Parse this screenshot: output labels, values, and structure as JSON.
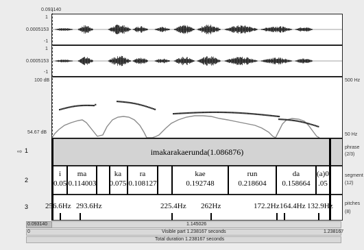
{
  "cursor": {
    "time": "0.093140"
  },
  "waveform": {
    "top": "1",
    "mid": "0.0005153",
    "bottom": "-1"
  },
  "spectrum": {
    "top_db": "100 dB",
    "bottom_db": "54.67 dB",
    "top_hz": "500 Hz",
    "bottom_hz": "50 Hz"
  },
  "tiers": [
    {
      "number": "1",
      "name": "phrase",
      "count": "(2/3)",
      "label": "imakarakaerunda(1.086876)"
    },
    {
      "number": "2",
      "name": "segment",
      "count": "(12)",
      "segments": [
        {
          "text": "i",
          "value": "0.05"
        },
        {
          "text": "ma",
          "value": "0.114003"
        },
        {
          "text": "ka",
          "value": "0.075"
        },
        {
          "text": "ra",
          "value": "0.108127"
        },
        {
          "text": "kae",
          "value": "0.192748"
        },
        {
          "text": "run",
          "value": "0.218604"
        },
        {
          "text": "da",
          "value": "0.158664"
        },
        {
          "text": "(a)0",
          "value": ".05"
        }
      ]
    },
    {
      "number": "3",
      "name": "pitches",
      "count": "(8)",
      "pitches": [
        "256.6Hz",
        "293.6Hz",
        "225.4Hz",
        "262Hz",
        "172.2Hz",
        "164.4Hz",
        "132.9Hz"
      ]
    }
  ],
  "time_bar": {
    "left": "0.093140",
    "center": "1.145026"
  },
  "visible_bar": {
    "left": "0",
    "center": "Visible part 1.238167 seconds",
    "right": "1.238167"
  },
  "total_bar": {
    "center": "Total duration 1.238167 seconds"
  },
  "colors": {
    "pitch_dots": "#333333",
    "intensity_curve": "#8a8a8a",
    "phrase_tier_bg": "#d3d3d3",
    "cursor": "#555555"
  }
}
